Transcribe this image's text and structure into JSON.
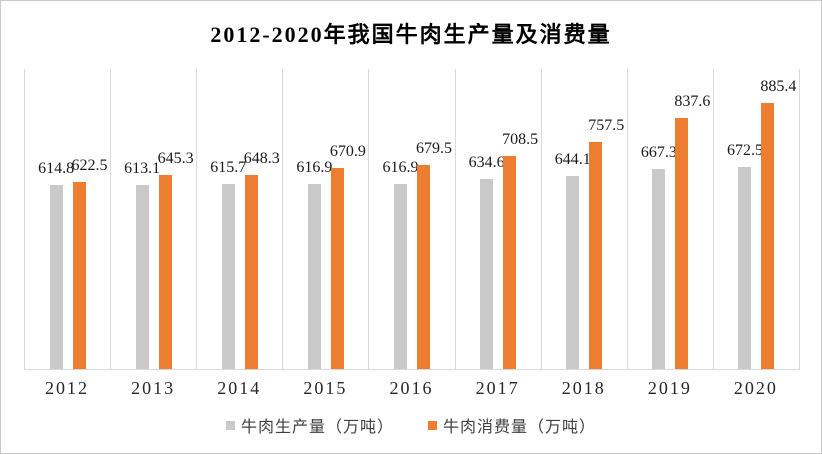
{
  "chart_data": {
    "type": "bar",
    "title": "2012-2020年我国牛肉生产量及消费量",
    "categories": [
      "2012",
      "2013",
      "2014",
      "2015",
      "2016",
      "2017",
      "2018",
      "2019",
      "2020"
    ],
    "series": [
      {
        "name": "牛肉生产量（万吨）",
        "color": "#C9C9C9",
        "values": [
          614.8,
          613.1,
          615.7,
          616.9,
          616.9,
          634.6,
          644.1,
          667.3,
          672.5
        ]
      },
      {
        "name": "牛肉消费量（万吨）",
        "color": "#ED7D31",
        "values": [
          622.5,
          645.3,
          648.3,
          670.9,
          679.5,
          708.5,
          757.5,
          837.6,
          885.4
        ]
      }
    ],
    "xlabel": "",
    "ylabel": "",
    "ylim": [
      0,
      1000
    ],
    "value_labels": true,
    "legend_position": "bottom",
    "gridlines": "vertical-category-separators",
    "gridline_color": "#D9D9D9",
    "background": "#FFFFFF",
    "frame_border_color": "#C8C8C8"
  }
}
